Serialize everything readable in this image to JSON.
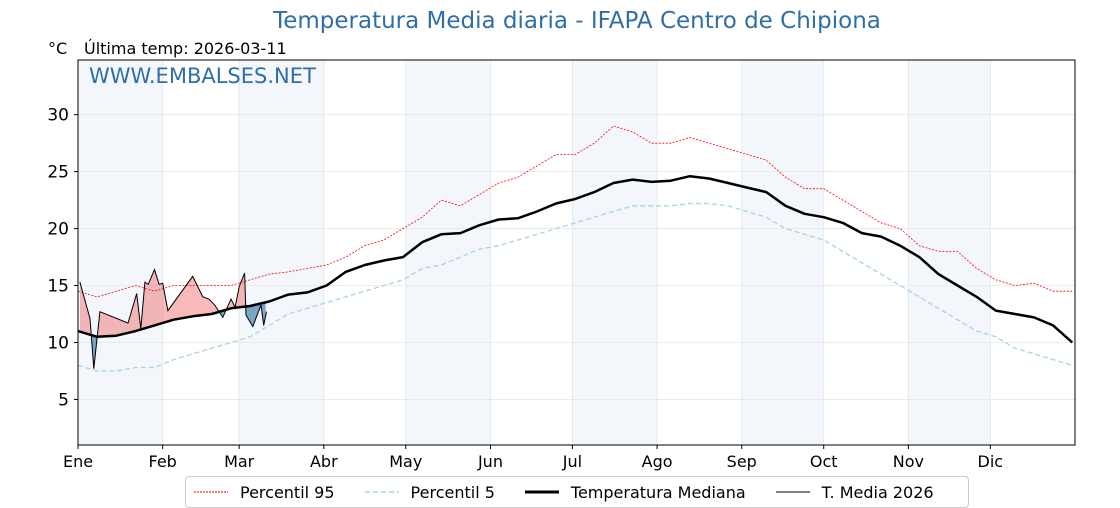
{
  "header": {
    "title": "Temperatura Media diaria - IFAPA Centro de Chipiona",
    "unit": "°C",
    "last_temp": "Última temp: 2026-03-11",
    "watermark": "WWW.EMBALSES.NET"
  },
  "chart_data": {
    "type": "line",
    "title": "Temperatura Media diaria - IFAPA Centro de Chipiona",
    "ylabel": "°C",
    "xlabel": "",
    "xlim": [
      0,
      365
    ],
    "ylim": [
      1,
      34.8
    ],
    "yticks": [
      5,
      10,
      15,
      20,
      25,
      30
    ],
    "xticks": [
      {
        "day": 0,
        "label": "Ene"
      },
      {
        "day": 31,
        "label": "Feb"
      },
      {
        "day": 59,
        "label": "Mar"
      },
      {
        "day": 90,
        "label": "Abr"
      },
      {
        "day": 120,
        "label": "May"
      },
      {
        "day": 151,
        "label": "Jun"
      },
      {
        "day": 181,
        "label": "Jul"
      },
      {
        "day": 212,
        "label": "Ago"
      },
      {
        "day": 243,
        "label": "Sep"
      },
      {
        "day": 273,
        "label": "Oct"
      },
      {
        "day": 304,
        "label": "Nov"
      },
      {
        "day": 334,
        "label": "Dic"
      }
    ],
    "grid": true,
    "legend_position": "bottom-center",
    "colors": {
      "p95": "#ff0000",
      "p5": "#a8d4e0",
      "median": "#000000",
      "current": "#000000",
      "above": "#f08080",
      "below": "#4682b4",
      "band": "#f3f7fb"
    },
    "series": [
      {
        "name": "Percentil 95",
        "key": "p95",
        "points": [
          [
            0,
            14.5
          ],
          [
            7,
            14
          ],
          [
            14,
            14.5
          ],
          [
            21,
            15
          ],
          [
            28,
            14.5
          ],
          [
            35,
            15
          ],
          [
            42,
            15
          ],
          [
            49,
            15
          ],
          [
            56,
            15
          ],
          [
            63,
            15.5
          ],
          [
            70,
            16
          ],
          [
            77,
            16.2
          ],
          [
            84,
            16.5
          ],
          [
            91,
            16.8
          ],
          [
            98,
            17.5
          ],
          [
            105,
            18.5
          ],
          [
            112,
            19
          ],
          [
            119,
            20
          ],
          [
            126,
            21
          ],
          [
            133,
            22.5
          ],
          [
            140,
            22
          ],
          [
            147,
            23
          ],
          [
            154,
            24
          ],
          [
            161,
            24.5
          ],
          [
            168,
            25.5
          ],
          [
            175,
            26.5
          ],
          [
            182,
            26.5
          ],
          [
            189,
            27.5
          ],
          [
            196,
            29
          ],
          [
            203,
            28.5
          ],
          [
            210,
            27.5
          ],
          [
            217,
            27.5
          ],
          [
            224,
            28
          ],
          [
            231,
            27.5
          ],
          [
            238,
            27
          ],
          [
            245,
            26.5
          ],
          [
            252,
            26
          ],
          [
            259,
            24.5
          ],
          [
            266,
            23.5
          ],
          [
            273,
            23.5
          ],
          [
            280,
            22.5
          ],
          [
            287,
            21.5
          ],
          [
            294,
            20.5
          ],
          [
            301,
            20
          ],
          [
            308,
            18.5
          ],
          [
            315,
            18
          ],
          [
            322,
            18
          ],
          [
            329,
            16.5
          ],
          [
            336,
            15.5
          ],
          [
            343,
            15
          ],
          [
            350,
            15.2
          ],
          [
            357,
            14.5
          ],
          [
            364,
            14.5
          ]
        ]
      },
      {
        "name": "Percentil 5",
        "key": "p5",
        "points": [
          [
            0,
            8
          ],
          [
            7,
            7.5
          ],
          [
            14,
            7.5
          ],
          [
            21,
            7.8
          ],
          [
            28,
            7.8
          ],
          [
            35,
            8.5
          ],
          [
            42,
            9
          ],
          [
            49,
            9.5
          ],
          [
            56,
            10
          ],
          [
            63,
            10.5
          ],
          [
            70,
            11.5
          ],
          [
            77,
            12.5
          ],
          [
            84,
            13
          ],
          [
            91,
            13.5
          ],
          [
            98,
            14
          ],
          [
            105,
            14.5
          ],
          [
            112,
            15
          ],
          [
            119,
            15.5
          ],
          [
            126,
            16.5
          ],
          [
            133,
            16.8
          ],
          [
            140,
            17.5
          ],
          [
            147,
            18.2
          ],
          [
            154,
            18.5
          ],
          [
            161,
            19
          ],
          [
            168,
            19.5
          ],
          [
            175,
            20
          ],
          [
            182,
            20.5
          ],
          [
            189,
            21
          ],
          [
            196,
            21.5
          ],
          [
            203,
            22
          ],
          [
            210,
            22
          ],
          [
            217,
            22
          ],
          [
            224,
            22.2
          ],
          [
            231,
            22.2
          ],
          [
            238,
            22
          ],
          [
            245,
            21.5
          ],
          [
            252,
            21
          ],
          [
            259,
            20
          ],
          [
            266,
            19.5
          ],
          [
            273,
            19
          ],
          [
            280,
            18
          ],
          [
            287,
            17
          ],
          [
            294,
            16
          ],
          [
            301,
            15
          ],
          [
            308,
            14
          ],
          [
            315,
            13
          ],
          [
            322,
            12
          ],
          [
            329,
            11
          ],
          [
            336,
            10.5
          ],
          [
            343,
            9.5
          ],
          [
            350,
            9
          ],
          [
            357,
            8.5
          ],
          [
            364,
            8
          ]
        ]
      },
      {
        "name": "Temperatura Mediana",
        "key": "median",
        "points": [
          [
            0,
            11
          ],
          [
            7,
            10.5
          ],
          [
            14,
            10.6
          ],
          [
            21,
            11
          ],
          [
            28,
            11.5
          ],
          [
            35,
            12
          ],
          [
            42,
            12.3
          ],
          [
            49,
            12.5
          ],
          [
            56,
            13
          ],
          [
            63,
            13.2
          ],
          [
            70,
            13.6
          ],
          [
            77,
            14.2
          ],
          [
            84,
            14.4
          ],
          [
            91,
            15
          ],
          [
            98,
            16.2
          ],
          [
            105,
            16.8
          ],
          [
            112,
            17.2
          ],
          [
            119,
            17.5
          ],
          [
            126,
            18.8
          ],
          [
            133,
            19.5
          ],
          [
            140,
            19.6
          ],
          [
            147,
            20.3
          ],
          [
            154,
            20.8
          ],
          [
            161,
            20.9
          ],
          [
            168,
            21.5
          ],
          [
            175,
            22.2
          ],
          [
            182,
            22.6
          ],
          [
            189,
            23.2
          ],
          [
            196,
            24
          ],
          [
            203,
            24.3
          ],
          [
            210,
            24.1
          ],
          [
            217,
            24.2
          ],
          [
            224,
            24.6
          ],
          [
            231,
            24.4
          ],
          [
            238,
            24
          ],
          [
            245,
            23.6
          ],
          [
            252,
            23.2
          ],
          [
            259,
            22
          ],
          [
            266,
            21.3
          ],
          [
            273,
            21
          ],
          [
            280,
            20.5
          ],
          [
            287,
            19.6
          ],
          [
            294,
            19.3
          ],
          [
            301,
            18.5
          ],
          [
            308,
            17.5
          ],
          [
            315,
            16
          ],
          [
            322,
            15
          ],
          [
            329,
            14
          ],
          [
            336,
            12.8
          ],
          [
            343,
            12.5
          ],
          [
            350,
            12.2
          ],
          [
            357,
            11.5
          ],
          [
            364,
            10
          ]
        ]
      },
      {
        "name": "T. Media 2026",
        "key": "current",
        "points": [
          [
            0.7,
            15.3
          ],
          [
            4.4,
            12.1
          ],
          [
            5.8,
            7.7
          ],
          [
            8,
            12.7
          ],
          [
            18.3,
            11.7
          ],
          [
            21.5,
            14.3
          ],
          [
            23,
            11.2
          ],
          [
            24.5,
            15.3
          ],
          [
            25.7,
            15.1
          ],
          [
            28,
            16.4
          ],
          [
            29.7,
            15.1
          ],
          [
            31,
            15.2
          ],
          [
            32.9,
            12.8
          ],
          [
            42,
            15.8
          ],
          [
            45.7,
            14
          ],
          [
            48,
            13.8
          ],
          [
            50,
            13.3
          ],
          [
            53,
            12.2
          ],
          [
            56,
            13.8
          ],
          [
            57.5,
            13.1
          ],
          [
            59,
            14.9
          ],
          [
            61,
            16.1
          ],
          [
            61.5,
            12.4
          ],
          [
            64,
            11.4
          ],
          [
            67,
            13.3
          ],
          [
            68,
            11.5
          ],
          [
            69,
            12.7
          ]
        ]
      }
    ]
  }
}
